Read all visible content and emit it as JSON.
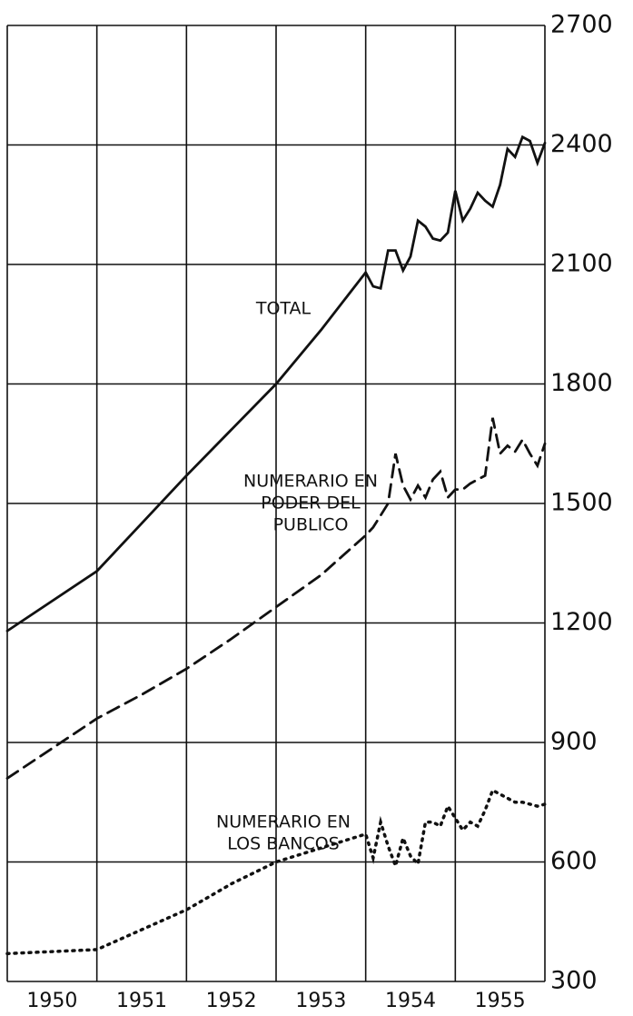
{
  "chart_data": {
    "type": "line",
    "categories": [
      "1950",
      "1951",
      "1952",
      "1953",
      "1954",
      "1955"
    ],
    "xlim": [
      1950,
      1956
    ],
    "ylim": [
      300,
      2700
    ],
    "yticks": [
      300,
      600,
      900,
      1200,
      1500,
      1800,
      2100,
      2400,
      2700
    ],
    "grid": true,
    "series": [
      {
        "name": "TOTAL",
        "color": "#111111",
        "style": "solid",
        "x": [
          1950,
          1951,
          1951.5,
          1952,
          1952.5,
          1953,
          1953.5,
          1954,
          1954.083,
          1954.167,
          1954.25,
          1954.333,
          1954.417,
          1954.5,
          1954.583,
          1954.667,
          1954.75,
          1954.833,
          1954.917,
          1955,
          1955.083,
          1955.167,
          1955.25,
          1955.333,
          1955.417,
          1955.5,
          1955.583,
          1955.667,
          1955.75,
          1955.833,
          1955.917,
          1956
        ],
        "values": [
          1180,
          1330,
          1450,
          1570,
          1685,
          1800,
          1935,
          2080,
          2045,
          2040,
          2135,
          2135,
          2085,
          2120,
          2210,
          2195,
          2165,
          2160,
          2180,
          2285,
          2210,
          2240,
          2280,
          2260,
          2245,
          2300,
          2390,
          2370,
          2420,
          2410,
          2355,
          2405
        ]
      },
      {
        "name": [
          "NUMERARIO EN",
          "PODER DEL",
          "PUBLICO"
        ],
        "color": "#111111",
        "style": "dashed",
        "x": [
          1950,
          1951,
          1951.5,
          1952,
          1952.5,
          1953,
          1953.5,
          1954,
          1954.083,
          1954.167,
          1954.25,
          1954.333,
          1954.417,
          1954.5,
          1954.583,
          1954.667,
          1954.75,
          1954.833,
          1954.917,
          1955,
          1955.083,
          1955.167,
          1955.25,
          1955.333,
          1955.417,
          1955.5,
          1955.583,
          1955.667,
          1955.75,
          1955.833,
          1955.917,
          1956
        ],
        "values": [
          810,
          960,
          1020,
          1085,
          1160,
          1240,
          1320,
          1420,
          1440,
          1470,
          1500,
          1625,
          1545,
          1510,
          1545,
          1515,
          1560,
          1580,
          1515,
          1535,
          1535,
          1550,
          1560,
          1570,
          1715,
          1625,
          1645,
          1630,
          1660,
          1625,
          1595,
          1650
        ]
      },
      {
        "name": [
          "NUMERARIO EN",
          "LOS BANCOS"
        ],
        "color": "#111111",
        "style": "dotted",
        "x": [
          1950,
          1951,
          1951.5,
          1952,
          1952.5,
          1953,
          1953.5,
          1954,
          1954.083,
          1954.167,
          1954.25,
          1954.333,
          1954.417,
          1954.5,
          1954.583,
          1954.667,
          1954.75,
          1954.833,
          1954.917,
          1955,
          1955.083,
          1955.167,
          1955.25,
          1955.333,
          1955.417,
          1955.5,
          1955.583,
          1955.667,
          1955.75,
          1955.833,
          1955.917,
          1956
        ],
        "values": [
          370,
          380,
          430,
          480,
          545,
          600,
          635,
          670,
          610,
          700,
          640,
          590,
          660,
          615,
          595,
          700,
          700,
          690,
          740,
          710,
          680,
          700,
          690,
          730,
          780,
          770,
          760,
          750,
          750,
          745,
          740,
          745
        ]
      }
    ]
  }
}
